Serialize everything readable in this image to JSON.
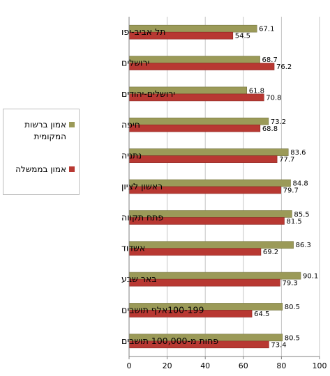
{
  "chart_data": {
    "type": "bar",
    "orientation": "horizontal",
    "categories": [
      "תל אביב-יפו",
      "ירושלים",
      "ירושלים-יהודים",
      "חיפה",
      "נתניה",
      "ראשון לציון",
      "פתח תקווה",
      "אשדוד",
      "באר שבע",
      "100-199אלף תושבים",
      "פחות מ-100,000 תושבים"
    ],
    "series": [
      {
        "name": "אמון ברשות המקומית",
        "color": "#9b9a58",
        "values": [
          67.1,
          68.7,
          61.8,
          73.2,
          83.6,
          84.8,
          85.5,
          86.3,
          90.1,
          80.5,
          80.5
        ]
      },
      {
        "name": "אמון בממשלה",
        "color": "#b83832",
        "values": [
          54.5,
          76.2,
          70.8,
          68.8,
          77.7,
          79.7,
          81.5,
          69.2,
          79.3,
          64.5,
          73.4
        ]
      }
    ],
    "xlim": [
      0,
      100
    ],
    "xticks": [
      "0",
      "20",
      "40",
      "60",
      "80",
      "100"
    ],
    "grid": true,
    "legend": "left"
  }
}
